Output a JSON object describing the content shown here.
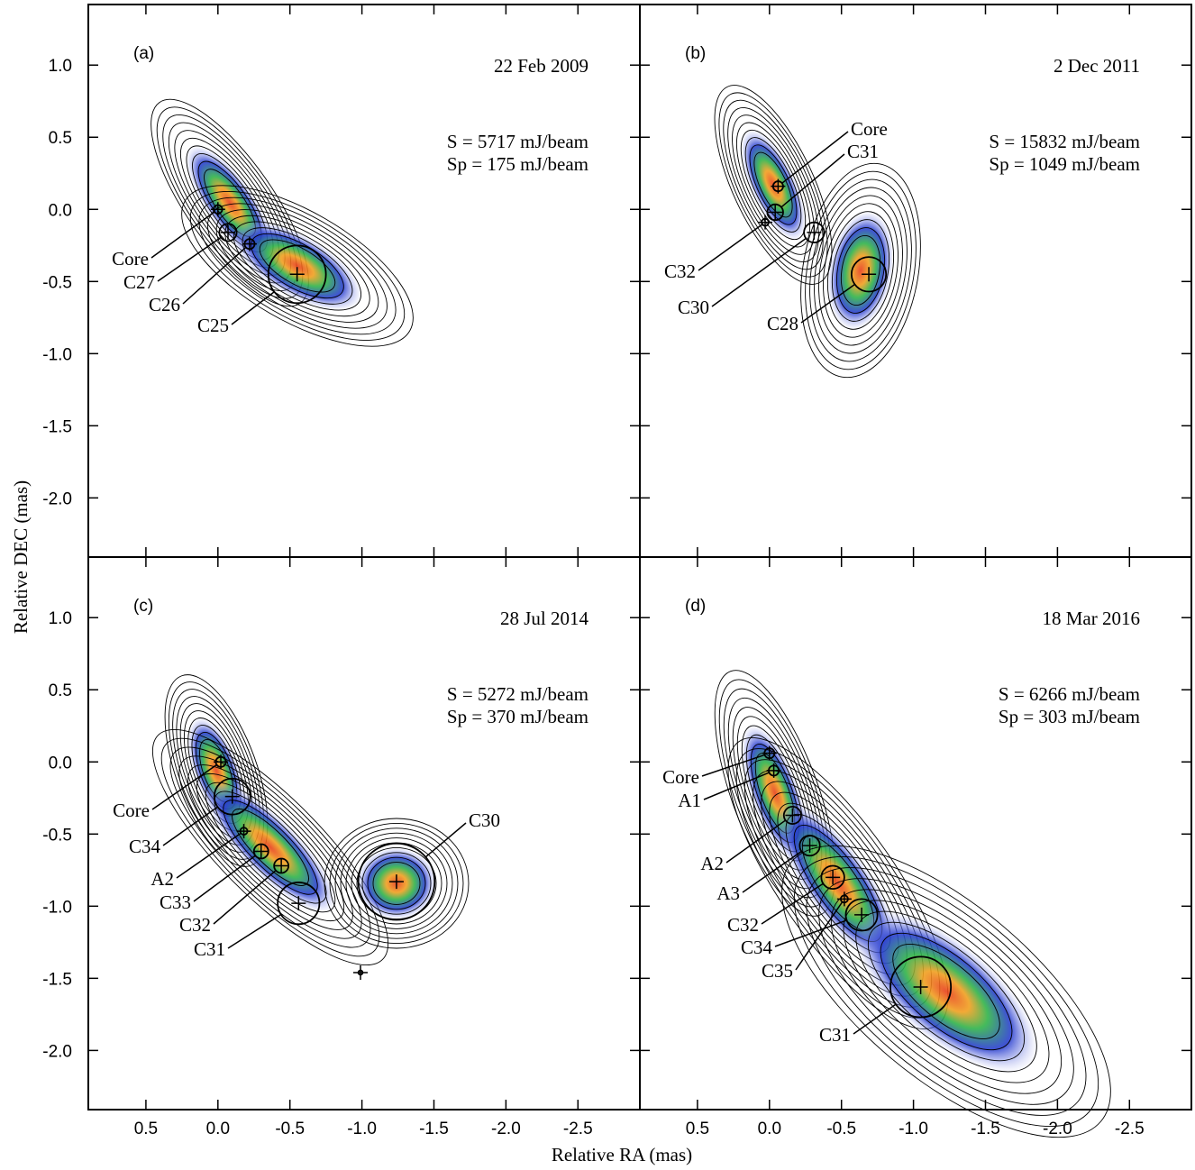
{
  "figure": {
    "x_label": "Relative RA (mas)",
    "y_label": "Relative DEC (mas)"
  },
  "chart_data": [
    {
      "type": "scatter",
      "panel_label": "(a)",
      "date": "22 Feb 2009",
      "annotations": [
        "S = 5717 mJ/beam",
        "Sp = 175 mJ/beam"
      ],
      "names": [
        "Core",
        "C27",
        "C26",
        "C25"
      ],
      "x": [
        0,
        -0.07,
        -0.22,
        -0.55
      ],
      "values": [
        0,
        -0.16,
        -0.24,
        -0.45
      ],
      "sizes": [
        0.06,
        0.12,
        0.07,
        0.4
      ],
      "xlim": [
        0.9,
        -2.93
      ],
      "ylim": [
        -2.41,
        1.42
      ],
      "xticks": [
        0.5,
        {
          "value": 0,
          "label": "0.0"
        },
        -0.5,
        {
          "value": -1,
          "label": "-1.0"
        },
        -1.5,
        {
          "value": -2,
          "label": "-2.0"
        },
        -2.5
      ],
      "yticks": [
        {
          "value": 1,
          "label": "1.0"
        },
        0.5,
        {
          "value": 0,
          "label": "0.0"
        },
        -0.5,
        {
          "value": -1,
          "label": "-1.0"
        },
        -1.5,
        {
          "value": -2,
          "label": "-2.0"
        }
      ]
    },
    {
      "type": "scatter",
      "panel_label": "(b)",
      "date": "2 Dec 2011",
      "annotations": [
        "S = 15832 mJ/beam",
        "Sp = 1049 mJ/beam"
      ],
      "names": [
        "Core",
        "C31",
        "C32",
        "C30",
        "C28"
      ],
      "x": [
        -0.06,
        -0.04,
        0.03,
        -0.31,
        -0.69
      ],
      "values": [
        0.16,
        -0.02,
        -0.09,
        -0.16,
        -0.45
      ],
      "sizes": [
        0.07,
        0.11,
        0.05,
        0.14,
        0.24
      ],
      "xlim": [
        0.9,
        -2.93
      ],
      "ylim": [
        -2.41,
        1.42
      ],
      "xticks": [
        0.5,
        {
          "value": 0,
          "label": "0.0"
        },
        -0.5,
        {
          "value": -1,
          "label": "-1.0"
        },
        -1.5,
        {
          "value": -2,
          "label": "-2.0"
        },
        -2.5
      ],
      "yticks": [
        {
          "value": 1,
          "label": "1.0"
        },
        0.5,
        {
          "value": 0,
          "label": "0.0"
        },
        -0.5,
        {
          "value": -1,
          "label": "-1.0"
        },
        -1.5,
        {
          "value": -2,
          "label": "-2.0"
        }
      ]
    },
    {
      "type": "scatter",
      "panel_label": "(c)",
      "date": "28 Jul 2014",
      "annotations": [
        "S = 5272 mJ/beam",
        "Sp = 370 mJ/beam"
      ],
      "names": [
        "Core",
        "C34",
        "A2",
        "C33",
        "C32",
        "C31",
        "C30",
        null
      ],
      "x": [
        -0.02,
        -0.1,
        -0.18,
        -0.3,
        -0.44,
        -0.56,
        -1.24,
        -0.99
      ],
      "values": [
        0,
        -0.24,
        -0.48,
        -0.62,
        -0.72,
        -0.98,
        -0.83,
        -1.46
      ],
      "sizes": [
        0.07,
        0.25,
        0.05,
        0.1,
        0.1,
        0.29,
        0.53,
        0.03
      ],
      "xlim": [
        0.9,
        -2.93
      ],
      "ylim": [
        -2.41,
        1.42
      ],
      "xticks": [
        0.5,
        {
          "value": 0,
          "label": "0.0"
        },
        -0.5,
        {
          "value": -1,
          "label": "-1.0"
        },
        -1.5,
        {
          "value": -2,
          "label": "-2.0"
        },
        -2.5
      ],
      "yticks": [
        {
          "value": 1,
          "label": "1.0"
        },
        0.5,
        {
          "value": 0,
          "label": "0.0"
        },
        -0.5,
        {
          "value": -1,
          "label": "-1.0"
        },
        -1.5,
        {
          "value": -2,
          "label": "-2.0"
        }
      ]
    },
    {
      "type": "scatter",
      "panel_label": "(d)",
      "date": "18 Mar 2016",
      "annotations": [
        "S = 6266 mJ/beam",
        "Sp = 303 mJ/beam"
      ],
      "names": [
        "Core",
        "A1",
        "A2",
        "A3",
        "C32",
        "C34",
        "C35",
        "C31"
      ],
      "x": [
        0,
        -0.03,
        -0.16,
        -0.28,
        -0.44,
        -0.64,
        -0.52,
        -1.05
      ],
      "values": [
        0.06,
        -0.06,
        -0.37,
        -0.58,
        -0.8,
        -1.06,
        -0.95,
        -1.56
      ],
      "sizes": [
        0.07,
        0.07,
        0.12,
        0.14,
        0.16,
        0.22,
        0.05,
        0.42
      ],
      "xlim": [
        0.9,
        -2.93
      ],
      "ylim": [
        -2.41,
        1.42
      ],
      "xticks": [
        0.5,
        {
          "value": 0,
          "label": "0.0"
        },
        -0.5,
        {
          "value": -1,
          "label": "-1.0"
        },
        -1.5,
        {
          "value": -2,
          "label": "-2.0"
        },
        -2.5
      ],
      "yticks": [
        {
          "value": 1,
          "label": "1.0"
        },
        0.5,
        {
          "value": 0,
          "label": "0.0"
        },
        -0.5,
        {
          "value": -1,
          "label": "-1.0"
        },
        -1.5,
        {
          "value": -2,
          "label": "-2.0"
        }
      ]
    }
  ]
}
